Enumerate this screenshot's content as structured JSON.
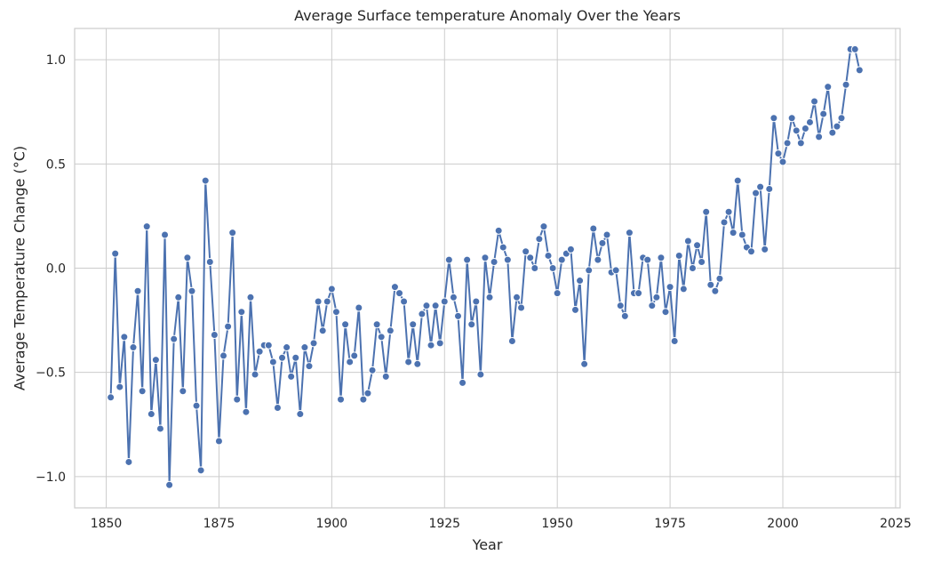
{
  "chart_data": {
    "type": "line",
    "title": "Average Surface temperature Anomaly Over the Years",
    "xlabel": "Year",
    "ylabel": "Average Temperature Change (°C)",
    "xlim": [
      1843,
      2026
    ],
    "ylim": [
      -1.15,
      1.15
    ],
    "xticks": [
      1850,
      1875,
      1900,
      1925,
      1950,
      1975,
      2000,
      2025
    ],
    "xtick_labels": [
      "1850",
      "1875",
      "1900",
      "1925",
      "1950",
      "1975",
      "2000",
      "2025"
    ],
    "yticks": [
      -1.0,
      -0.5,
      0.0,
      0.5,
      1.0
    ],
    "ytick_labels": [
      "−1.0",
      "−0.5",
      "0.0",
      "0.5",
      "1.0"
    ],
    "grid": true,
    "series": [
      {
        "color": "#4c72b0",
        "marker": "circle",
        "x": [
          1851,
          1852,
          1853,
          1854,
          1855,
          1856,
          1857,
          1858,
          1859,
          1860,
          1861,
          1862,
          1863,
          1864,
          1865,
          1866,
          1867,
          1868,
          1869,
          1870,
          1871,
          1872,
          1873,
          1874,
          1875,
          1876,
          1877,
          1878,
          1879,
          1880,
          1881,
          1882,
          1883,
          1884,
          1885,
          1886,
          1887,
          1888,
          1889,
          1890,
          1891,
          1892,
          1893,
          1894,
          1895,
          1896,
          1897,
          1898,
          1899,
          1900,
          1901,
          1902,
          1903,
          1904,
          1905,
          1906,
          1907,
          1908,
          1909,
          1910,
          1911,
          1912,
          1913,
          1914,
          1915,
          1916,
          1917,
          1918,
          1919,
          1920,
          1921,
          1922,
          1923,
          1924,
          1925,
          1926,
          1927,
          1928,
          1929,
          1930,
          1931,
          1932,
          1933,
          1934,
          1935,
          1936,
          1937,
          1938,
          1939,
          1940,
          1941,
          1942,
          1943,
          1944,
          1945,
          1946,
          1947,
          1948,
          1949,
          1950,
          1951,
          1952,
          1953,
          1954,
          1955,
          1956,
          1957,
          1958,
          1959,
          1960,
          1961,
          1962,
          1963,
          1964,
          1965,
          1966,
          1967,
          1968,
          1969,
          1970,
          1971,
          1972,
          1973,
          1974,
          1975,
          1976,
          1977,
          1978,
          1979,
          1980,
          1981,
          1982,
          1983,
          1984,
          1985,
          1986,
          1987,
          1988,
          1989,
          1990,
          1991,
          1992,
          1993,
          1994,
          1995,
          1996,
          1997,
          1998,
          1999,
          2000,
          2001,
          2002,
          2003,
          2004,
          2005,
          2006,
          2007,
          2008,
          2009,
          2010,
          2011,
          2012,
          2013,
          2014,
          2015,
          2016,
          2017
        ],
        "values": [
          -0.62,
          0.07,
          -0.57,
          -0.33,
          -0.93,
          -0.38,
          -0.11,
          -0.59,
          0.2,
          -0.7,
          -0.44,
          -0.77,
          0.16,
          -1.04,
          -0.34,
          -0.14,
          -0.59,
          0.05,
          -0.11,
          -0.66,
          -0.97,
          0.42,
          0.03,
          -0.32,
          -0.83,
          -0.42,
          -0.28,
          0.17,
          -0.63,
          -0.21,
          -0.69,
          -0.14,
          -0.51,
          -0.4,
          -0.37,
          -0.37,
          -0.45,
          -0.67,
          -0.43,
          -0.38,
          -0.52,
          -0.43,
          -0.7,
          -0.38,
          -0.47,
          -0.36,
          -0.16,
          -0.3,
          -0.16,
          -0.1,
          -0.21,
          -0.63,
          -0.27,
          -0.45,
          -0.42,
          -0.19,
          -0.63,
          -0.6,
          -0.49,
          -0.27,
          -0.33,
          -0.52,
          -0.3,
          -0.09,
          -0.12,
          -0.16,
          -0.45,
          -0.27,
          -0.46,
          -0.22,
          -0.18,
          -0.37,
          -0.18,
          -0.36,
          -0.16,
          0.04,
          -0.14,
          -0.23,
          -0.55,
          0.04,
          -0.27,
          -0.16,
          -0.51,
          0.05,
          -0.14,
          0.03,
          0.18,
          0.1,
          0.04,
          -0.35,
          -0.14,
          -0.19,
          0.08,
          0.05,
          0.0,
          0.14,
          0.2,
          0.06,
          0.0,
          -0.12,
          0.04,
          0.07,
          0.09,
          -0.2,
          -0.06,
          -0.46,
          -0.01,
          0.19,
          0.04,
          0.12,
          0.16,
          -0.02,
          -0.01,
          -0.18,
          -0.23,
          0.17,
          -0.12,
          -0.12,
          0.05,
          0.04,
          -0.18,
          -0.14,
          0.05,
          -0.21,
          -0.09,
          -0.35,
          0.06,
          -0.1,
          0.13,
          0.0,
          0.11,
          0.03,
          0.27,
          -0.08,
          -0.11,
          -0.05,
          0.22,
          0.27,
          0.17,
          0.42,
          0.16,
          0.1,
          0.08,
          0.36,
          0.39,
          0.09,
          0.38,
          0.72,
          0.55,
          0.51,
          0.6,
          0.72,
          0.66,
          0.6,
          0.67,
          0.7,
          0.8,
          0.63,
          0.74,
          0.87,
          0.65,
          0.68,
          0.72,
          0.88,
          1.05,
          1.05,
          0.95
        ]
      }
    ]
  }
}
